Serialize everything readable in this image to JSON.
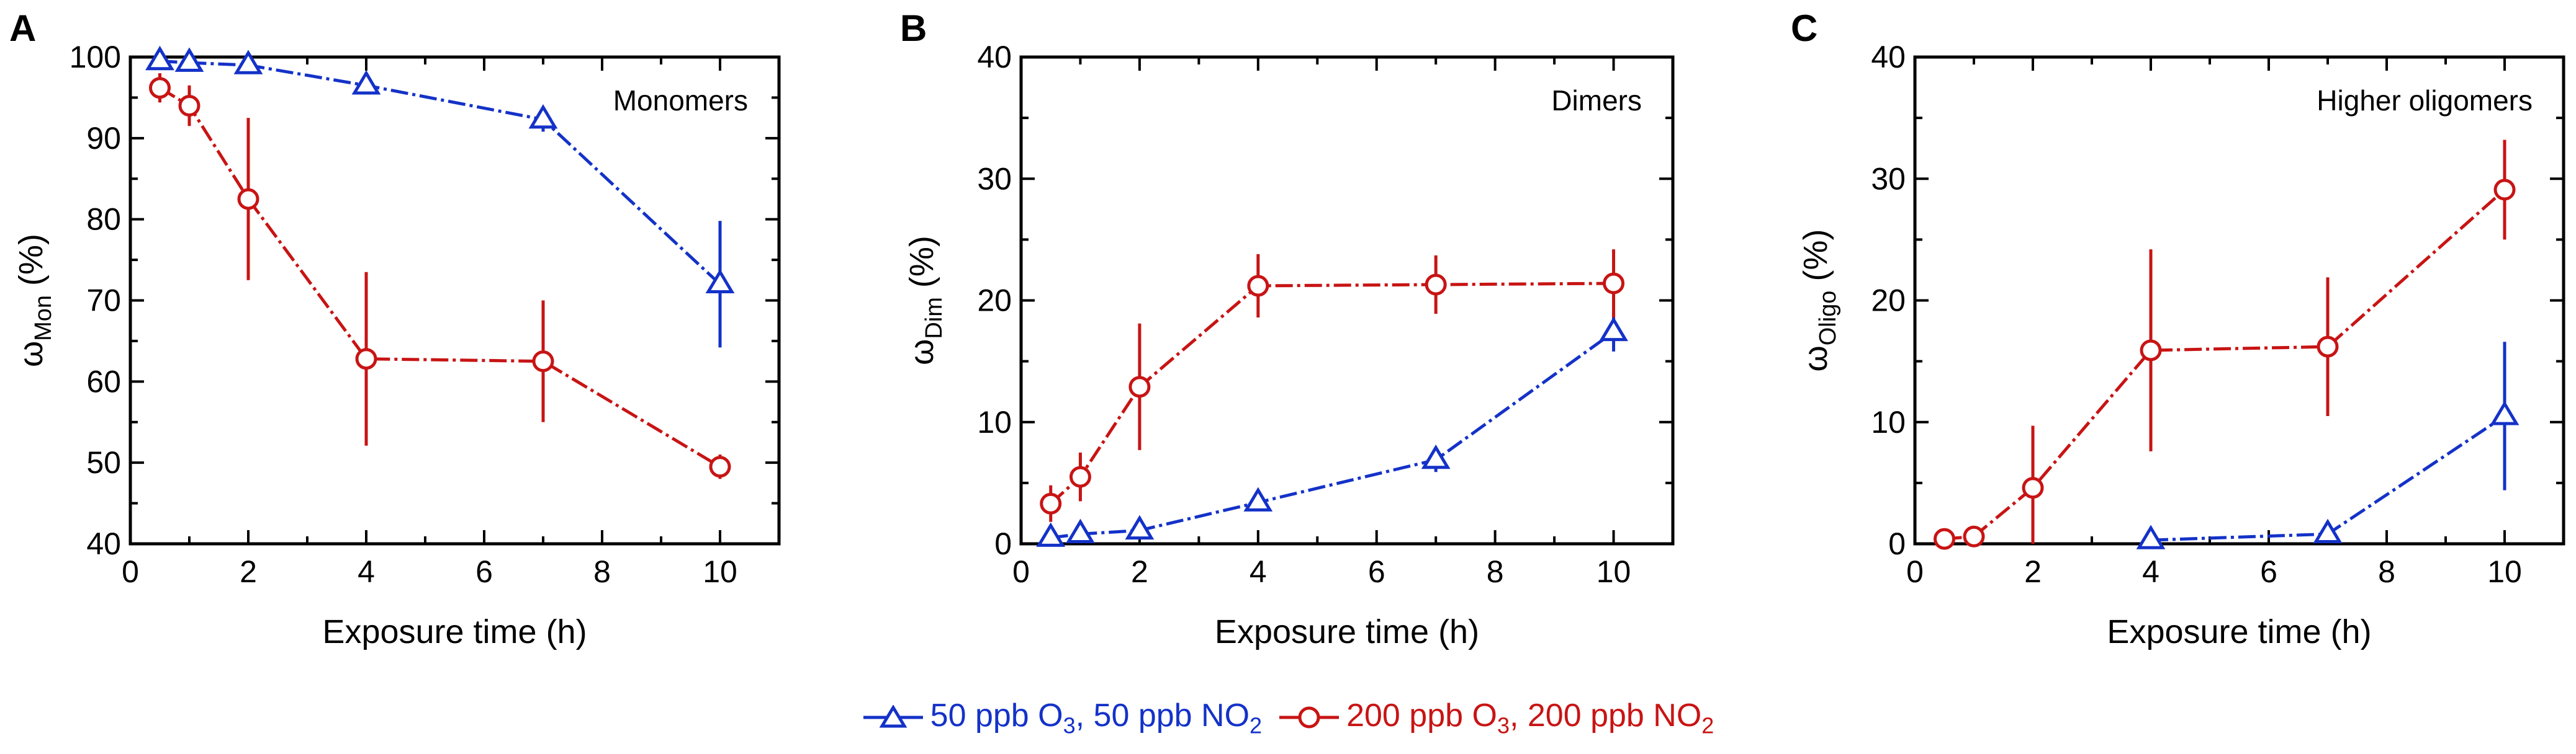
{
  "colors": {
    "blue": "#1432c8",
    "red": "#c81414",
    "axis": "#000000"
  },
  "legend": {
    "s1": {
      "pre": "50 ppb O",
      "sub1": "3",
      "mid": ", 50 ppb NO",
      "sub2": "2",
      "color": "#1432c8",
      "marker": "triangle"
    },
    "s2": {
      "pre": "200 ppb O",
      "sub1": "3",
      "mid": ", 200 ppb NO",
      "sub2": "2",
      "color": "#c81414",
      "marker": "circle"
    }
  },
  "chart_data": [
    {
      "type": "line",
      "panel_letter": "A",
      "title": "Monomers",
      "xlabel": "Exposure time (h)",
      "ylabel": {
        "main": "ω",
        "sub": "Mon",
        "unit": " (%)"
      },
      "xlim": [
        0,
        11
      ],
      "ylim": [
        40,
        100
      ],
      "xticks": [
        0,
        2,
        4,
        6,
        8,
        10
      ],
      "yticks": [
        40,
        50,
        60,
        70,
        80,
        90,
        100
      ],
      "series": [
        {
          "name": "50 ppb O3, 50 ppb NO2",
          "marker": "triangle",
          "color": "#1432c8",
          "x": [
            0.5,
            1,
            2,
            4,
            7,
            10
          ],
          "y": [
            99.5,
            99.3,
            99.0,
            96.5,
            92.3,
            72.0
          ],
          "err": [
            0.4,
            0.5,
            0.6,
            1.0,
            1.5,
            7.8
          ]
        },
        {
          "name": "200 ppb O3, 200 ppb NO2",
          "marker": "circle",
          "color": "#c81414",
          "x": [
            0.5,
            1,
            2,
            4,
            7,
            10
          ],
          "y": [
            96.2,
            94.0,
            82.5,
            62.8,
            62.5,
            49.5
          ],
          "err": [
            1.8,
            2.5,
            10.0,
            10.7,
            7.5,
            1.5
          ]
        }
      ]
    },
    {
      "type": "line",
      "panel_letter": "B",
      "title": "Dimers",
      "xlabel": "Exposure time (h)",
      "ylabel": {
        "main": "ω",
        "sub": "Dim",
        "unit": " (%)"
      },
      "xlim": [
        0,
        11
      ],
      "ylim": [
        0,
        40
      ],
      "xticks": [
        0,
        2,
        4,
        6,
        8,
        10
      ],
      "yticks": [
        0,
        10,
        20,
        30,
        40
      ],
      "series": [
        {
          "name": "50 ppb O3, 50 ppb NO2",
          "marker": "triangle",
          "color": "#1432c8",
          "x": [
            0.5,
            1,
            2,
            4,
            7,
            10
          ],
          "y": [
            0.5,
            0.8,
            1.1,
            3.4,
            6.9,
            17.4
          ],
          "err": [
            0.2,
            0.3,
            0.3,
            0.5,
            1.0,
            1.6
          ]
        },
        {
          "name": "200 ppb O3, 200 ppb NO2",
          "marker": "circle",
          "color": "#c81414",
          "x": [
            0.5,
            1,
            2,
            4,
            7,
            10
          ],
          "y": [
            3.3,
            5.5,
            12.9,
            21.2,
            21.3,
            21.4
          ],
          "err": [
            1.5,
            2.0,
            5.2,
            2.6,
            2.4,
            2.8
          ]
        }
      ]
    },
    {
      "type": "line",
      "panel_letter": "C",
      "title": "Higher oligomers",
      "xlabel": "Exposure time (h)",
      "ylabel": {
        "main": "ω",
        "sub": "Oligo",
        "unit": " (%)"
      },
      "xlim": [
        0,
        11
      ],
      "ylim": [
        0,
        40
      ],
      "xticks": [
        0,
        2,
        4,
        6,
        8,
        10
      ],
      "yticks": [
        0,
        10,
        20,
        30,
        40
      ],
      "series": [
        {
          "name": "50 ppb O3, 50 ppb NO2",
          "marker": "triangle",
          "color": "#1432c8",
          "x": [
            4,
            7,
            10
          ],
          "y": [
            0.3,
            0.8,
            10.5
          ],
          "err": [
            0.2,
            0.3,
            6.1
          ]
        },
        {
          "name": "200 ppb O3, 200 ppb NO2",
          "marker": "circle",
          "color": "#c81414",
          "x": [
            0.5,
            1,
            2,
            4,
            7,
            10
          ],
          "y": [
            0.4,
            0.6,
            4.6,
            15.9,
            16.2,
            29.1
          ],
          "err": [
            0.2,
            0.3,
            5.1,
            8.3,
            5.7,
            4.1
          ]
        }
      ]
    }
  ]
}
